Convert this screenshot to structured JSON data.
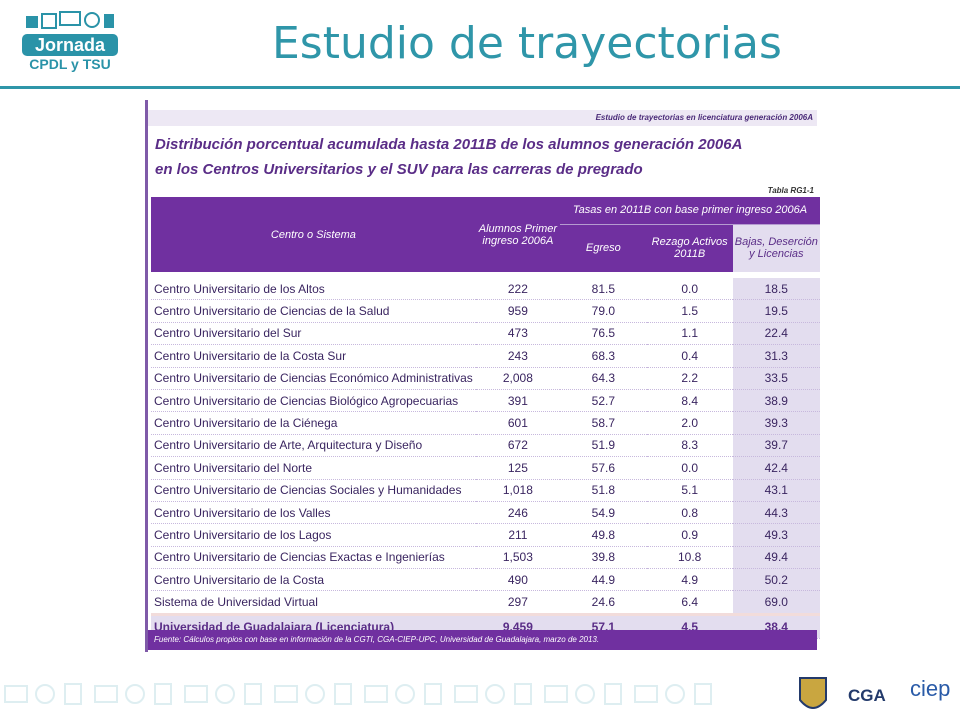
{
  "header": {
    "logo_title": "Jornada",
    "logo_subtitle": "CPDL y TSU",
    "title": "Estudio de trayectorias"
  },
  "table": {
    "caption": "Estudio de trayectorias en licenciatura generación 2006A",
    "title": [
      "Distribución porcentual acumulada hasta 2011B de los alumnos generación 2006A",
      "en los Centros Universitarios y el SUV para las carreras de pregrado"
    ],
    "label": "Tabla RG1-1",
    "group_header": "Tasas en 2011B con base primer ingreso 2006A",
    "columns": [
      "Centro o Sistema",
      "Alumnos Primer ingreso 2006A",
      "Egreso",
      "Rezago Activos 2011B",
      "Bajas, Deserción y Licencias"
    ],
    "rows": [
      [
        "Centro Universitario de los Altos",
        "222",
        "81.5",
        "0.0",
        "18.5"
      ],
      [
        "Centro Universitario de Ciencias de la Salud",
        "959",
        "79.0",
        "1.5",
        "19.5"
      ],
      [
        "Centro Universitario del Sur",
        "473",
        "76.5",
        "1.1",
        "22.4"
      ],
      [
        "Centro Universitario de la Costa Sur",
        "243",
        "68.3",
        "0.4",
        "31.3"
      ],
      [
        "Centro Universitario de Ciencias Económico Administrativas",
        "2,008",
        "64.3",
        "2.2",
        "33.5"
      ],
      [
        "Centro Universitario de Ciencias Biológico Agropecuarias",
        "391",
        "52.7",
        "8.4",
        "38.9"
      ],
      [
        "Centro Universitario de la Ciénega",
        "601",
        "58.7",
        "2.0",
        "39.3"
      ],
      [
        "Centro Universitario de Arte, Arquitectura y Diseño",
        "672",
        "51.9",
        "8.3",
        "39.7"
      ],
      [
        "Centro Universitario del Norte",
        "125",
        "57.6",
        "0.0",
        "42.4"
      ],
      [
        "Centro Universitario de Ciencias Sociales y Humanidades",
        "1,018",
        "51.8",
        "5.1",
        "43.1"
      ],
      [
        "Centro Universitario de los Valles",
        "246",
        "54.9",
        "0.8",
        "44.3"
      ],
      [
        "Centro Universitario de los Lagos",
        "211",
        "49.8",
        "0.9",
        "49.3"
      ],
      [
        "Centro Universitario de Ciencias Exactas e Ingenierías",
        "1,503",
        "39.8",
        "10.8",
        "49.4"
      ],
      [
        "Centro Universitario de la Costa",
        "490",
        "44.9",
        "4.9",
        "50.2"
      ],
      [
        "Sistema de Universidad Virtual",
        "297",
        "24.6",
        "6.4",
        "69.0"
      ]
    ],
    "total": [
      "Universidad de Guadalajara  (Licenciatura)",
      "9,459",
      "57.1",
      "4.5",
      "38.4"
    ],
    "footnote": "Fuente: Cálculos propios con base en información de la CGTI, CGA-CIEP-UPC, Universidad de Guadalajara, marzo de 2013."
  },
  "footer": {
    "logos": [
      "CGA",
      "ciep"
    ]
  }
}
